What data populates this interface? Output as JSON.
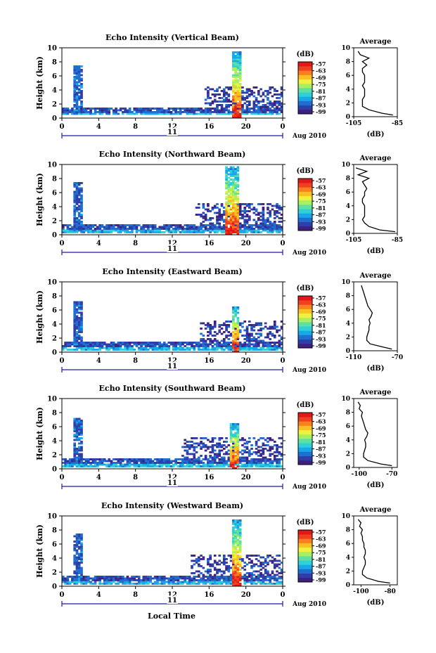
{
  "figure": {
    "local_time_label": "Local Time",
    "month_label": "Aug 2010",
    "day_label": "11"
  },
  "colorbar": {
    "unit": "(dB)",
    "ticks": [
      "-57",
      "-63",
      "-69",
      "-75",
      "-81",
      "-87",
      "-93",
      "-99"
    ],
    "colors": [
      "#3f1f7f",
      "#2f3fa8",
      "#1f6fd0",
      "#18a8e8",
      "#2fd0d8",
      "#5fe0a0",
      "#a8f060",
      "#f0f040",
      "#f8c020",
      "#f88020",
      "#f04020",
      "#e01818"
    ]
  },
  "chart_data": [
    {
      "type": "heatmap",
      "title": "Echo Intensity (Vertical Beam)",
      "xlabel": "",
      "ylabel": "Height (km)",
      "x_ticks": [
        "0",
        "4",
        "8",
        "12",
        "16",
        "20",
        "0"
      ],
      "y_ticks": [
        "0",
        "2",
        "4",
        "6",
        "8",
        "10"
      ],
      "xlim": [
        0,
        24
      ],
      "ylim": [
        0,
        10
      ],
      "echo_regions": [
        {
          "hour": [
            1.3,
            2.3
          ],
          "height": [
            0.5,
            7.5
          ],
          "level": 0.15
        },
        {
          "hour": [
            0,
            24
          ],
          "height": [
            0.5,
            1.6
          ],
          "level": 0.12
        },
        {
          "hour": [
            15.5,
            24
          ],
          "height": [
            1.6,
            4.5
          ],
          "level": 0.08
        },
        {
          "hour": [
            18.6,
            19.6
          ],
          "height": [
            0,
            9.6
          ],
          "level": 0.6
        }
      ],
      "profile": {
        "title": "Average",
        "xlabel": "(dB)",
        "x_ticks": [
          "-105",
          "-85"
        ],
        "xlim": [
          -105,
          -85
        ],
        "y_ticks": [
          "0",
          "2",
          "4",
          "6",
          "8",
          "10"
        ],
        "heights": [
          0.25,
          0.5,
          1,
          1.5,
          2,
          2.5,
          3,
          3.5,
          4,
          4.5,
          5,
          5.5,
          6,
          6.5,
          7,
          7.5,
          8,
          8.5,
          9,
          9.5
        ],
        "values": [
          -87,
          -92,
          -98,
          -101,
          -101,
          -101,
          -100,
          -100,
          -100,
          -101,
          -100,
          -100,
          -100,
          -101,
          -101,
          -99,
          -101,
          -98,
          -102,
          -103
        ]
      }
    },
    {
      "type": "heatmap",
      "title": "Echo Intensity (Northward Beam)",
      "xlabel": "",
      "ylabel": "Height (km)",
      "x_ticks": [
        "0",
        "4",
        "8",
        "12",
        "16",
        "20",
        "0"
      ],
      "y_ticks": [
        "0",
        "2",
        "4",
        "6",
        "8",
        "10"
      ],
      "xlim": [
        0,
        24
      ],
      "ylim": [
        0,
        10
      ],
      "echo_regions": [
        {
          "hour": [
            1.3,
            2.3
          ],
          "height": [
            0.5,
            7.5
          ],
          "level": 0.15
        },
        {
          "hour": [
            0,
            24
          ],
          "height": [
            0.3,
            1.6
          ],
          "level": 0.12
        },
        {
          "hour": [
            14.5,
            24
          ],
          "height": [
            1.6,
            4.5
          ],
          "level": 0.08
        },
        {
          "hour": [
            17.8,
            19.2
          ],
          "height": [
            0,
            9.8
          ],
          "level": 0.6
        }
      ],
      "profile": {
        "title": "Average",
        "xlabel": "(dB)",
        "x_ticks": [
          "-105",
          "-85"
        ],
        "xlim": [
          -105,
          -85
        ],
        "y_ticks": [
          "0",
          "2",
          "4",
          "6",
          "8",
          "10"
        ],
        "heights": [
          0.25,
          0.5,
          1,
          1.5,
          2,
          2.5,
          3,
          3.5,
          4,
          4.5,
          5,
          5.5,
          6,
          6.5,
          7,
          7.5,
          8,
          8.5,
          9,
          9.5
        ],
        "values": [
          -86,
          -93,
          -98,
          -100,
          -101,
          -100,
          -100,
          -100,
          -100,
          -101,
          -101,
          -100,
          -100,
          -99,
          -100,
          -101,
          -98,
          -103,
          -99,
          -104
        ]
      }
    },
    {
      "type": "heatmap",
      "title": "Echo Intensity (Eastward Beam)",
      "xlabel": "",
      "ylabel": "Height (km)",
      "x_ticks": [
        "0",
        "4",
        "8",
        "12",
        "16",
        "20",
        "0"
      ],
      "y_ticks": [
        "0",
        "2",
        "4",
        "6",
        "8",
        "10"
      ],
      "xlim": [
        0,
        24
      ],
      "ylim": [
        0,
        10
      ],
      "echo_regions": [
        {
          "hour": [
            1.3,
            2.3
          ],
          "height": [
            0.5,
            7.2
          ],
          "level": 0.15
        },
        {
          "hour": [
            0,
            24
          ],
          "height": [
            0.3,
            1.6
          ],
          "level": 0.12
        },
        {
          "hour": [
            15,
            24
          ],
          "height": [
            1.6,
            4.5
          ],
          "level": 0.08
        },
        {
          "hour": [
            18.4,
            19.2
          ],
          "height": [
            0,
            6.5
          ],
          "level": 0.6
        }
      ],
      "profile": {
        "title": "Average",
        "xlabel": "(dB)",
        "x_ticks": [
          "-110",
          "-70"
        ],
        "xlim": [
          -110,
          -70
        ],
        "y_ticks": [
          "0",
          "2",
          "4",
          "6",
          "8",
          "10"
        ],
        "heights": [
          0.25,
          0.5,
          1,
          1.5,
          2,
          2.5,
          3,
          3.5,
          4,
          4.5,
          5,
          5.5,
          6,
          6.5,
          7,
          7.5,
          8,
          8.5,
          9,
          9.5
        ],
        "values": [
          -75,
          -82,
          -95,
          -98,
          -98,
          -97,
          -96,
          -96,
          -95,
          -96,
          -94,
          -93,
          -95,
          -97,
          -98,
          -99,
          -100,
          -101,
          -102,
          -103
        ]
      }
    },
    {
      "type": "heatmap",
      "title": "Echo Intensity (Southward Beam)",
      "xlabel": "",
      "ylabel": "Height (km)",
      "x_ticks": [
        "0",
        "4",
        "8",
        "12",
        "16",
        "20",
        "0"
      ],
      "y_ticks": [
        "0",
        "2",
        "4",
        "6",
        "8",
        "10"
      ],
      "xlim": [
        0,
        24
      ],
      "ylim": [
        0,
        10
      ],
      "echo_regions": [
        {
          "hour": [
            1.3,
            2.3
          ],
          "height": [
            0.5,
            7.2
          ],
          "level": 0.15
        },
        {
          "hour": [
            0,
            24
          ],
          "height": [
            0.3,
            1.6
          ],
          "level": 0.12
        },
        {
          "hour": [
            13,
            24
          ],
          "height": [
            1.6,
            4.5
          ],
          "level": 0.08
        },
        {
          "hour": [
            18.2,
            19.2
          ],
          "height": [
            0,
            6.5
          ],
          "level": 0.6
        }
      ],
      "profile": {
        "title": "Average",
        "xlabel": "(dB)",
        "x_ticks": [
          "-100",
          "-70"
        ],
        "xlim": [
          -105,
          -65
        ],
        "y_ticks": [
          "0",
          "2",
          "4",
          "6",
          "8",
          "10"
        ],
        "heights": [
          0.25,
          0.5,
          1,
          1.5,
          2,
          2.5,
          3,
          3.5,
          4,
          4.5,
          5,
          5.5,
          6,
          6.5,
          7,
          7.5,
          8,
          8.5,
          9,
          9.5
        ],
        "values": [
          -70,
          -80,
          -92,
          -96,
          -96,
          -95,
          -94,
          -94,
          -95,
          -93,
          -92,
          -94,
          -95,
          -96,
          -97,
          -98,
          -97,
          -100,
          -99,
          -101
        ]
      }
    },
    {
      "type": "heatmap",
      "title": "Echo Intensity (Westward Beam)",
      "xlabel": "",
      "ylabel": "Height (km)",
      "x_ticks": [
        "0",
        "4",
        "8",
        "12",
        "16",
        "20",
        "0"
      ],
      "y_ticks": [
        "0",
        "2",
        "4",
        "6",
        "8",
        "10"
      ],
      "xlim": [
        0,
        24
      ],
      "ylim": [
        0,
        10
      ],
      "echo_regions": [
        {
          "hour": [
            1.3,
            2.3
          ],
          "height": [
            0.5,
            7.5
          ],
          "level": 0.15
        },
        {
          "hour": [
            0,
            24
          ],
          "height": [
            0.3,
            1.6
          ],
          "level": 0.12
        },
        {
          "hour": [
            14,
            24
          ],
          "height": [
            1.6,
            4.5
          ],
          "level": 0.08
        },
        {
          "hour": [
            18.4,
            19.5
          ],
          "height": [
            0,
            9.5
          ],
          "level": 0.6
        }
      ],
      "profile": {
        "title": "Average",
        "xlabel": "(dB)",
        "x_ticks": [
          "-100",
          "-80"
        ],
        "xlim": [
          -105,
          -75
        ],
        "y_ticks": [
          "0",
          "2",
          "4",
          "6",
          "8",
          "10"
        ],
        "heights": [
          0.25,
          0.5,
          1,
          1.5,
          2,
          2.5,
          3,
          3.5,
          4,
          4.5,
          5,
          5.5,
          6,
          6.5,
          7,
          7.5,
          8,
          8.5,
          9,
          9.5
        ],
        "values": [
          -80,
          -88,
          -96,
          -99,
          -99,
          -98,
          -97,
          -97,
          -98,
          -97,
          -97,
          -98,
          -98,
          -99,
          -99,
          -100,
          -99,
          -101,
          -100,
          -102
        ]
      }
    }
  ]
}
